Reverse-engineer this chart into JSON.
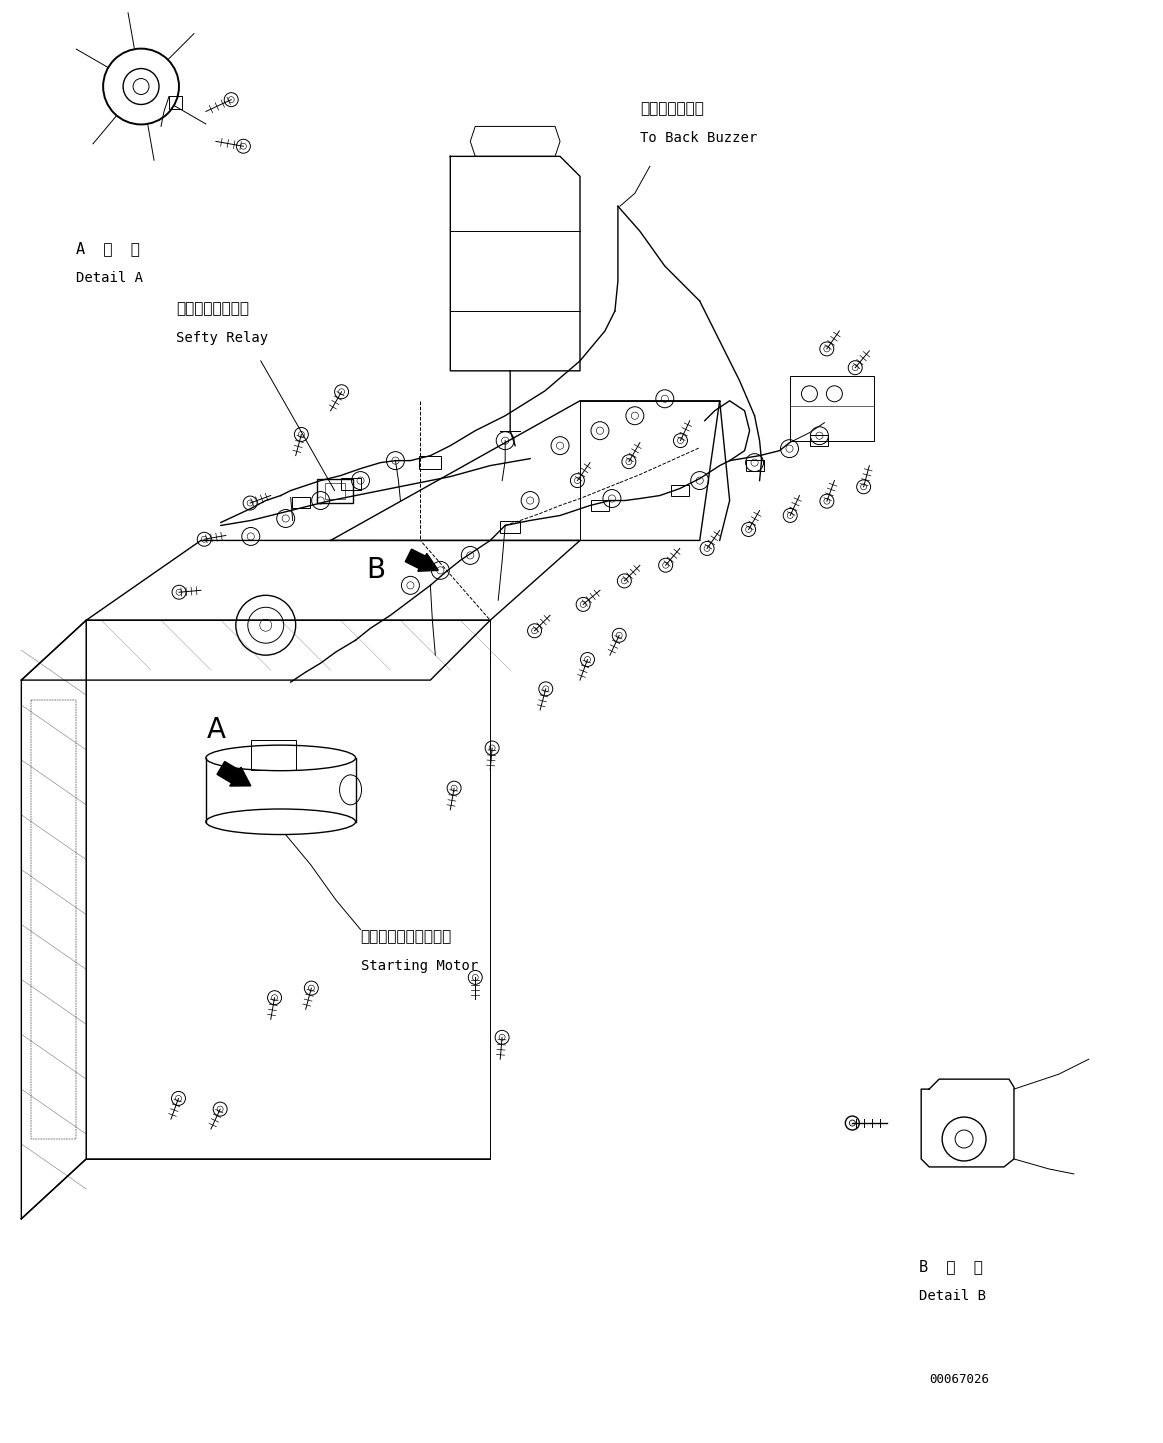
{
  "bg_color": "#ffffff",
  "line_color": "#000000",
  "figsize": [
    11.63,
    14.43
  ],
  "dpi": 100,
  "labels": {
    "detail_a_jp": "A  詳  細",
    "detail_a_en": "Detail A",
    "detail_b_jp": "B  詳  細",
    "detail_b_en": "Detail B",
    "back_buzzer_jp": "バックブザーへ",
    "back_buzzer_en": "To Back Buzzer",
    "safety_relay_jp": "セーフティリレー",
    "safety_relay_en": "Sefty Relay",
    "starting_motor_jp": "スターティングモータ",
    "starting_motor_en": "Starting Motor",
    "label_A": "A",
    "label_B": "B",
    "part_number": "00067026"
  },
  "font_jp": 11,
  "font_en": 10,
  "font_mono": 9,
  "font_label_large": 20
}
